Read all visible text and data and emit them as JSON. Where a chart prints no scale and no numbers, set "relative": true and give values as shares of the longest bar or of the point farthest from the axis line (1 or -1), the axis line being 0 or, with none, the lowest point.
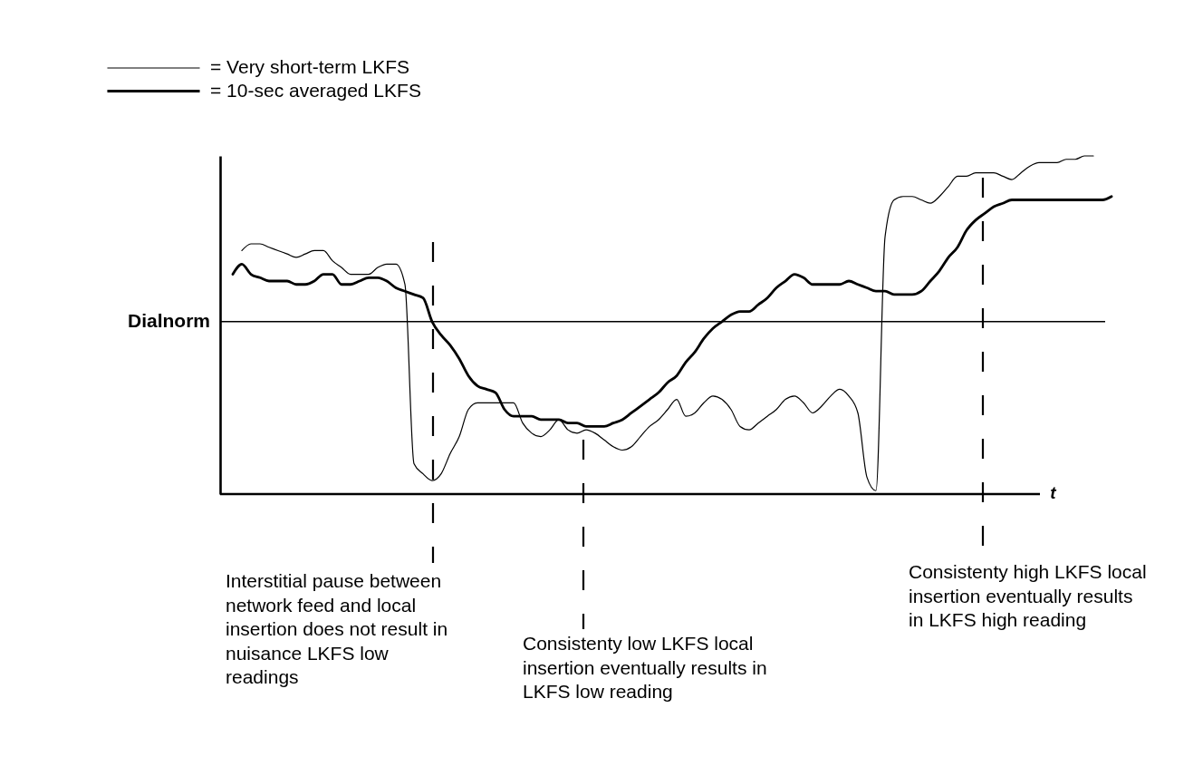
{
  "chart_data": {
    "type": "line",
    "relative": true,
    "xlabel": "t",
    "legend": "top left",
    "categories": [
      null,
      null,
      null,
      null,
      null,
      null,
      null,
      null,
      null,
      null,
      null,
      null,
      null,
      null,
      null,
      null,
      null,
      null,
      null,
      null,
      null,
      null,
      null,
      null,
      null,
      null,
      null,
      null,
      null,
      null,
      null,
      null,
      null,
      null,
      null,
      null,
      null,
      null,
      null,
      null,
      null,
      null,
      null,
      null,
      null,
      null,
      null,
      null,
      null,
      null,
      null,
      null,
      null,
      null,
      null,
      null,
      null,
      null,
      null,
      null,
      null,
      null,
      null,
      null,
      null,
      null,
      null,
      null,
      null,
      null,
      null,
      null,
      null,
      null,
      null,
      null,
      null,
      null,
      null,
      null,
      null,
      null,
      null,
      null,
      null,
      null,
      null,
      null,
      null,
      null,
      null,
      null,
      null,
      null,
      null,
      null,
      null,
      null
    ],
    "series": [
      {
        "name": "= Very short-term LKFS",
        "color": "#000000",
        "values": [
          null,
          0.72,
          0.74,
          0.74,
          0.73,
          0.72,
          0.71,
          0.7,
          0.71,
          0.72,
          0.72,
          0.69,
          0.67,
          0.65,
          0.65,
          0.65,
          0.67,
          0.68,
          0.68,
          0.62,
          0.09,
          0.06,
          0.04,
          0.06,
          0.12,
          0.17,
          0.25,
          0.27,
          0.27,
          0.27,
          0.27,
          0.27,
          0.21,
          0.18,
          0.17,
          0.19,
          0.22,
          0.19,
          0.18,
          0.19,
          0.18,
          0.16,
          0.14,
          0.13,
          0.14,
          0.17,
          0.2,
          0.22,
          0.25,
          0.28,
          0.23,
          0.24,
          0.27,
          0.29,
          0.28,
          0.25,
          0.2,
          0.19,
          0.21,
          0.23,
          0.25,
          0.28,
          0.29,
          0.27,
          0.24,
          0.26,
          0.29,
          0.31,
          0.29,
          0.24,
          0.05,
          0.01,
          0.76,
          0.87,
          0.88,
          0.88,
          0.87,
          0.86,
          0.88,
          0.91,
          0.94,
          0.94,
          0.95,
          0.95,
          0.95,
          0.94,
          0.93,
          0.95,
          0.97,
          0.98,
          0.98,
          0.98,
          0.99,
          0.99,
          1.0,
          1.0,
          null,
          null
        ]
      },
      {
        "name": "= 10-sec averaged LKFS",
        "color": "#000000",
        "values": [
          0.65,
          0.68,
          0.65,
          0.64,
          0.63,
          0.63,
          0.63,
          0.62,
          0.62,
          0.63,
          0.65,
          0.65,
          0.62,
          0.62,
          0.63,
          0.64,
          0.64,
          0.63,
          0.61,
          0.6,
          0.59,
          0.58,
          0.51,
          0.47,
          0.44,
          0.4,
          0.35,
          0.32,
          0.31,
          0.3,
          0.25,
          0.23,
          0.23,
          0.23,
          0.22,
          0.22,
          0.22,
          0.21,
          0.21,
          0.2,
          0.2,
          0.2,
          0.21,
          0.22,
          0.24,
          0.26,
          0.28,
          0.3,
          0.33,
          0.35,
          0.39,
          0.42,
          0.46,
          0.49,
          0.51,
          0.53,
          0.54,
          0.54,
          0.56,
          0.58,
          0.61,
          0.63,
          0.65,
          0.64,
          0.62,
          0.62,
          0.62,
          0.62,
          0.63,
          0.62,
          0.61,
          0.6,
          0.6,
          0.59,
          0.59,
          0.59,
          0.6,
          0.63,
          0.66,
          0.7,
          0.73,
          0.78,
          0.81,
          0.83,
          0.85,
          0.86,
          0.87,
          0.87,
          0.87,
          0.87,
          0.87,
          0.87,
          0.87,
          0.87,
          0.87,
          0.87,
          0.87,
          0.88
        ]
      }
    ],
    "ref_lines": [
      {
        "axis": "y",
        "value": 0.51,
        "label": "Dialnorm"
      }
    ],
    "annotations": [
      "Interstitial pause between network feed and local insertion does not result in nuisance LKFS low readings",
      "Consistenty low LKFS local insertion eventually results in LKFS low reading",
      "Consistenty high LKFS local insertion eventually results in LKFS high reading"
    ]
  }
}
